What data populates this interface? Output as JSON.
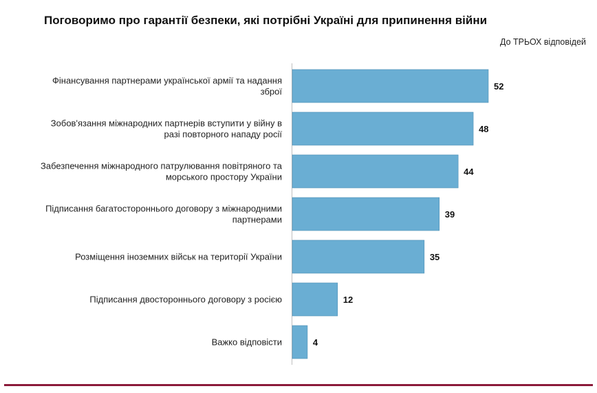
{
  "chart_data": {
    "type": "bar",
    "orientation": "horizontal",
    "title": "Поговоримо про гарантії безпеки, які потрібні Україні для припинення війни",
    "subtitle": "До ТРЬОХ відповідей",
    "categories": [
      [
        "Фінансування партнерами української армії та надання",
        "зброї"
      ],
      [
        "Зобов'язання міжнародних партнерів вступити у війну в",
        "разі повторного нападу росії"
      ],
      [
        "Забезпечення міжнародного патрулювання повітряного та",
        "морського простору України"
      ],
      [
        "Підписання багатостороннього договору з міжнародними",
        "партнерами"
      ],
      [
        "Розміщення іноземних військ на території України"
      ],
      [
        "Підписання двостороннього договору з росією"
      ],
      [
        "Важко відповісти"
      ]
    ],
    "values": [
      52,
      48,
      44,
      39,
      35,
      12,
      4
    ],
    "xlim": [
      0,
      52
    ],
    "grid": false,
    "legend": "none",
    "bar_color": "#6aaed3",
    "bar_border_color": "#4f8fb5",
    "accent_rule_color": "#8b1a3a"
  }
}
